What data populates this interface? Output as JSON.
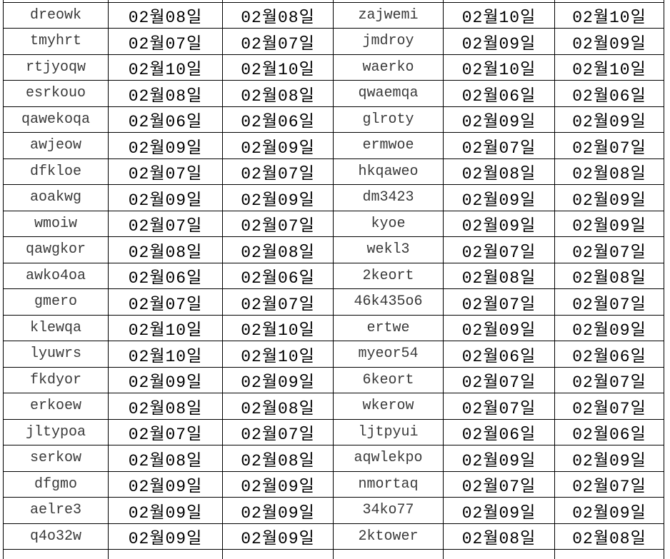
{
  "table": {
    "column_roles": [
      "name",
      "date",
      "date",
      "name",
      "date",
      "date"
    ],
    "rows": [
      [
        "dreowk",
        "02월08일",
        "02월08일",
        "zajwemi",
        "02월10일",
        "02월10일"
      ],
      [
        "tmyhrt",
        "02월07일",
        "02월07일",
        "jmdroy",
        "02월09일",
        "02월09일"
      ],
      [
        "rtjyoqw",
        "02월10일",
        "02월10일",
        "waerko",
        "02월10일",
        "02월10일"
      ],
      [
        "esrkouo",
        "02월08일",
        "02월08일",
        "qwaemqa",
        "02월06일",
        "02월06일"
      ],
      [
        "qawekoqa",
        "02월06일",
        "02월06일",
        "glroty",
        "02월09일",
        "02월09일"
      ],
      [
        "awjeow",
        "02월09일",
        "02월09일",
        "ermwoe",
        "02월07일",
        "02월07일"
      ],
      [
        "dfkloe",
        "02월07일",
        "02월07일",
        "hkqaweo",
        "02월08일",
        "02월08일"
      ],
      [
        "aoakwg",
        "02월09일",
        "02월09일",
        "dm3423",
        "02월09일",
        "02월09일"
      ],
      [
        "wmoiw",
        "02월07일",
        "02월07일",
        "kyoe",
        "02월09일",
        "02월09일"
      ],
      [
        "qawgkor",
        "02월08일",
        "02월08일",
        "wekl3",
        "02월07일",
        "02월07일"
      ],
      [
        "awko4oa",
        "02월06일",
        "02월06일",
        "2keort",
        "02월08일",
        "02월08일"
      ],
      [
        "gmero",
        "02월07일",
        "02월07일",
        "46k435o6",
        "02월07일",
        "02월07일"
      ],
      [
        "klewqa",
        "02월10일",
        "02월10일",
        "ertwe",
        "02월09일",
        "02월09일"
      ],
      [
        "lyuwrs",
        "02월10일",
        "02월10일",
        "myeor54",
        "02월06일",
        "02월06일"
      ],
      [
        "fkdyor",
        "02월09일",
        "02월09일",
        "6keort",
        "02월07일",
        "02월07일"
      ],
      [
        "erkoew",
        "02월08일",
        "02월08일",
        "wkerow",
        "02월07일",
        "02월07일"
      ],
      [
        "jltypoa",
        "02월07일",
        "02월07일",
        "ljtpyui",
        "02월06일",
        "02월06일"
      ],
      [
        "serkow",
        "02월08일",
        "02월08일",
        "aqwlekpo",
        "02월09일",
        "02월09일"
      ],
      [
        "dfgmo",
        "02월09일",
        "02월09일",
        "nmortaq",
        "02월07일",
        "02월07일"
      ],
      [
        "aelre3",
        "02월09일",
        "02월09일",
        "34ko77",
        "02월09일",
        "02월09일"
      ],
      [
        "q4o32w",
        "02월09일",
        "02월09일",
        "2ktower",
        "02월08일",
        "02월08일"
      ]
    ]
  },
  "colors": {
    "border": "#000000",
    "name_text": "#3a3a3a",
    "date_text": "#000000",
    "background": "#ffffff"
  }
}
